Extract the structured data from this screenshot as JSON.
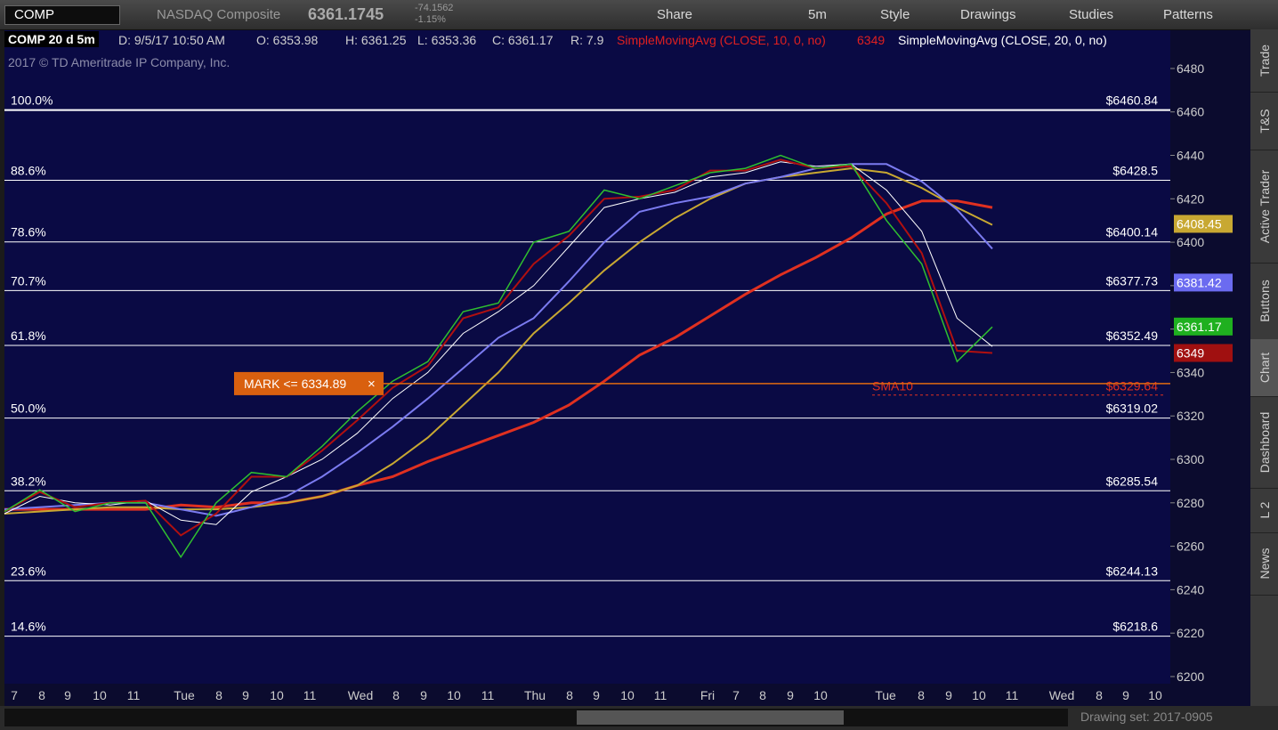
{
  "toolbar": {
    "symbol": "COMP",
    "name": "NASDAQ Composite",
    "last": "6361.1745",
    "change": "-74.1562",
    "change_pct": "-1.15%",
    "share": "Share",
    "interval": "5m",
    "style": "Style",
    "drawings": "Drawings",
    "studies": "Studies",
    "patterns": "Patterns"
  },
  "header": {
    "chart_id": "COMP 20 d 5m",
    "date": "D: 9/5/17 10:50 AM",
    "open": "O: 6353.98",
    "high": "H: 6361.25",
    "low": "L: 6353.36",
    "close": "C: 6361.17",
    "range": "R: 7.9",
    "study1": "SimpleMovingAvg (CLOSE, 10, 0, no)",
    "study1_value": "6349",
    "study2": "SimpleMovingAvg (CLOSE, 20, 0, no)",
    "copyright": "2017 © TD Ameritrade IP Company, Inc."
  },
  "sidebar": [
    "Trade",
    "T&S",
    "Active Trader",
    "Buttons",
    "Chart",
    "Dashboard",
    "L 2",
    "News"
  ],
  "footer": {
    "drawing_set": "Drawing set: 2017-0905"
  },
  "chart_data": {
    "type": "line",
    "ylim": [
      6196.7,
      6497.6
    ],
    "yticks": [
      6200,
      6220,
      6240,
      6260,
      6280,
      6300,
      6320,
      6340,
      6360,
      6380,
      6400,
      6420,
      6440,
      6460,
      6480
    ],
    "x_tick_labels": [
      "7",
      "8",
      "9",
      "10",
      "11",
      "Tue",
      "8",
      "9",
      "10",
      "11",
      "Wed",
      "8",
      "9",
      "10",
      "11",
      "Thu",
      "8",
      "9",
      "10",
      "11",
      "Fri",
      "7",
      "8",
      "9",
      "10",
      "Tue",
      "8",
      "9",
      "10",
      "11",
      "Wed",
      "8",
      "9",
      "10"
    ],
    "series": [
      {
        "color": "#e03020",
        "values": [
          6277,
          6277,
          6277,
          6277,
          6277,
          6279,
          6278,
          6280,
          6280,
          6283,
          6288,
          6292,
          6299,
          6305,
          6311,
          6317,
          6325,
          6336,
          6348,
          6356,
          6366,
          6376,
          6385,
          6393,
          6402,
          6413,
          6419,
          6419,
          6416
        ]
      },
      {
        "color": "#c8a832",
        "values": [
          6275,
          6276,
          6277,
          6278,
          6278,
          6277,
          6277,
          6278,
          6280,
          6283,
          6288,
          6298,
          6310,
          6325,
          6340,
          6358,
          6372,
          6387,
          6400,
          6411,
          6420,
          6427,
          6430,
          6432,
          6434,
          6432,
          6425,
          6416,
          6408
        ]
      },
      {
        "color": "#7b7bf0",
        "values": [
          6277,
          6278,
          6279,
          6280,
          6280,
          6277,
          6274,
          6278,
          6283,
          6292,
          6303,
          6315,
          6328,
          6342,
          6356,
          6365,
          6382,
          6400,
          6414,
          6418,
          6421,
          6427,
          6430,
          6434,
          6436,
          6436,
          6428,
          6415,
          6397
        ]
      },
      {
        "color": "#ffffff",
        "values": [
          6275,
          6283,
          6280,
          6279,
          6281,
          6272,
          6270,
          6285,
          6292,
          6300,
          6312,
          6328,
          6340,
          6358,
          6368,
          6380,
          6398,
          6416,
          6420,
          6423,
          6430,
          6432,
          6437,
          6435,
          6436,
          6424,
          6405,
          6365,
          6352
        ]
      },
      {
        "color": "#b01010",
        "values": [
          6276,
          6285,
          6278,
          6280,
          6281,
          6265,
          6275,
          6292,
          6292,
          6304,
          6318,
          6333,
          6343,
          6365,
          6370,
          6390,
          6403,
          6420,
          6421,
          6424,
          6433,
          6433,
          6438,
          6434,
          6435,
          6418,
          6395,
          6350,
          6349
        ]
      },
      {
        "color": "#2fbf2f",
        "values": [
          6276,
          6286,
          6276,
          6280,
          6280,
          6255,
          6280,
          6294,
          6292,
          6306,
          6322,
          6336,
          6345,
          6368,
          6372,
          6400,
          6405,
          6424,
          6420,
          6426,
          6432,
          6434,
          6440,
          6434,
          6436,
          6410,
          6390,
          6345,
          6361
        ]
      }
    ],
    "fib_levels": [
      {
        "percent": "100.0%",
        "value": 6460.84,
        "label": "$6460.84"
      },
      {
        "percent": "88.6%",
        "value": 6428.5,
        "label": "$6428.5"
      },
      {
        "percent": "78.6%",
        "value": 6400.14,
        "label": "$6400.14"
      },
      {
        "percent": "70.7%",
        "value": 6377.73,
        "label": "$6377.73"
      },
      {
        "percent": "61.8%",
        "value": 6352.49,
        "label": "$6352.49"
      },
      {
        "percent": "50.0%",
        "value": 6319.02,
        "label": "$6319.02"
      },
      {
        "percent": "38.2%",
        "value": 6285.54,
        "label": "$6285.54"
      },
      {
        "percent": "23.6%",
        "value": 6244.13,
        "label": "$6244.13"
      },
      {
        "percent": "14.6%",
        "value": 6218.6,
        "label": "$6218.6"
      }
    ],
    "mark": {
      "label": "MARK <= 6334.89",
      "value": 6334.89
    },
    "sma10_level": {
      "name": "SMA10",
      "value": 6329.64,
      "label": "$6329.64"
    },
    "price_tags": [
      {
        "value": 6408.45,
        "color": "#c8a832"
      },
      {
        "value": 6381.42,
        "color": "#6b6bf0"
      },
      {
        "value": 6361.17,
        "color": "#1fb01f"
      },
      {
        "value": 6349,
        "color": "#a01010"
      }
    ]
  }
}
